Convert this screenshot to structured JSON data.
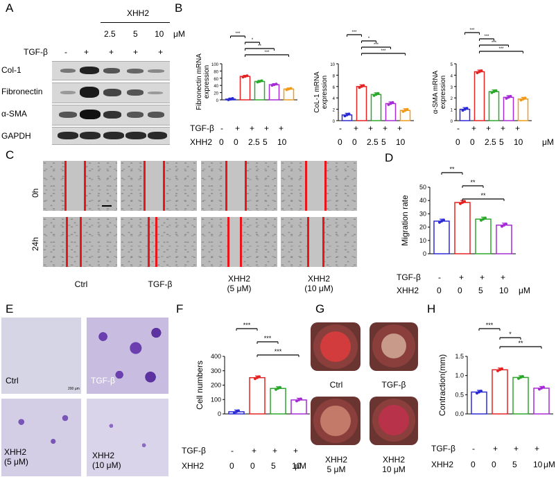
{
  "panel_letters": {
    "a": "A",
    "b": "B",
    "c": "C",
    "d": "D",
    "e": "E",
    "f": "F",
    "g": "G",
    "h": "H"
  },
  "panelA": {
    "xhh2_header": "XHH2",
    "doses": [
      "2.5",
      "5",
      "10"
    ],
    "unit": "μM",
    "tgf_label": "TGF-β",
    "tgf_signs": [
      "-",
      "+",
      "+",
      "+",
      "+"
    ],
    "rows": [
      "Col-1",
      "Fibronectin",
      "α-SMA",
      "GAPDH"
    ]
  },
  "panelB": {
    "row_labels": {
      "tgf": "TGF-β",
      "xhh2": "XHH2"
    },
    "tgf_signs": [
      "-",
      "+",
      "+",
      "+",
      "+"
    ],
    "xhh2_doses": [
      "0",
      "0",
      "2.5",
      "5",
      "10"
    ],
    "unit": "μM"
  },
  "panelC": {
    "row_labels": [
      "0h",
      "24h"
    ],
    "col_labels": [
      "Ctrl",
      "TGF-β",
      "XHH2\n(5 μM)",
      "XHH2\n(10 μM)"
    ]
  },
  "panelE": {
    "labels": [
      "Ctrl",
      "TGF-β",
      "XHH2\n(5 μM)",
      "XHH2\n(10 μM)"
    ],
    "scale_text": "200 μm"
  },
  "panelG": {
    "labels": [
      "Ctrl",
      "TGF-β",
      "XHH2\n5 μM",
      "XHH2\n10 μM"
    ]
  },
  "colors": {
    "ctrl": "#2b2bd6",
    "tgf": "#e52222",
    "x25": "#2ba82b",
    "x5": "#a62bd6",
    "x10": "#f09a1a"
  },
  "chart_data": [
    {
      "id": "B1",
      "type": "bar",
      "categories": [
        "Ctrl",
        "TGF-β",
        "XHH2 2.5",
        "XHH2 5",
        "XHH2 10"
      ],
      "values": [
        2,
        65,
        51,
        42,
        30
      ],
      "ylabel": "Fibronectin mRNA expression",
      "ylim": [
        0,
        100
      ],
      "yticks": [
        0,
        20,
        40,
        60,
        80,
        100
      ],
      "sig": [
        {
          "from": 0,
          "to": 1,
          "label": "***"
        },
        {
          "from": 1,
          "to": 2,
          "label": "*"
        },
        {
          "from": 1,
          "to": 3,
          "label": "**"
        },
        {
          "from": 1,
          "to": 4,
          "label": "***"
        }
      ]
    },
    {
      "id": "B2",
      "type": "bar",
      "categories": [
        "Ctrl",
        "TGF-β",
        "XHH2 2.5",
        "XHH2 5",
        "XHH2 10"
      ],
      "values": [
        1,
        6,
        4.6,
        3,
        1.8
      ],
      "ylabel": "CoL-1 mRNA expression",
      "ylim": [
        0,
        10
      ],
      "yticks": [
        0,
        2,
        4,
        6,
        8,
        10
      ],
      "sig": [
        {
          "from": 0,
          "to": 1,
          "label": "***"
        },
        {
          "from": 1,
          "to": 2,
          "label": "*"
        },
        {
          "from": 1,
          "to": 3,
          "label": "***"
        },
        {
          "from": 1,
          "to": 4,
          "label": "***"
        }
      ]
    },
    {
      "id": "B3",
      "type": "bar",
      "categories": [
        "Ctrl",
        "TGF-β",
        "XHH2 2.5",
        "XHH2 5",
        "XHH2 10"
      ],
      "values": [
        1,
        4.3,
        2.55,
        2.05,
        1.9
      ],
      "ylabel": "α-SMA mRNA expression",
      "ylim": [
        0,
        5
      ],
      "yticks": [
        0,
        1,
        2,
        3,
        4,
        5
      ],
      "sig": [
        {
          "from": 0,
          "to": 1,
          "label": "***"
        },
        {
          "from": 1,
          "to": 2,
          "label": "***"
        },
        {
          "from": 1,
          "to": 3,
          "label": "***"
        },
        {
          "from": 1,
          "to": 4,
          "label": "***"
        }
      ]
    },
    {
      "id": "D",
      "type": "bar",
      "categories": [
        "Ctrl",
        "TGF-β",
        "XHH2 5",
        "XHH2 10"
      ],
      "values": [
        24.5,
        38.5,
        26,
        21.5
      ],
      "ylabel": "Migration rate",
      "ylim": [
        0,
        50
      ],
      "yticks": [
        0,
        10,
        20,
        30,
        40,
        50
      ],
      "sig": [
        {
          "from": 0,
          "to": 1,
          "label": "**"
        },
        {
          "from": 1,
          "to": 2,
          "label": "**"
        },
        {
          "from": 1,
          "to": 3,
          "label": "**"
        }
      ],
      "x_rows": {
        "tgf": [
          "-",
          "+",
          "+",
          "+"
        ],
        "xhh2": [
          "0",
          "0",
          "5",
          "10"
        ]
      }
    },
    {
      "id": "F",
      "type": "bar",
      "categories": [
        "Ctrl",
        "TGF-β",
        "XHH2 5",
        "XHH2 10"
      ],
      "values": [
        15,
        252,
        177,
        97
      ],
      "ylabel": "Cell numbers",
      "ylim": [
        0,
        400
      ],
      "yticks": [
        0,
        100,
        200,
        300,
        400
      ],
      "sig": [
        {
          "from": 0,
          "to": 1,
          "label": "***"
        },
        {
          "from": 1,
          "to": 2,
          "label": "***"
        },
        {
          "from": 1,
          "to": 3,
          "label": "***"
        }
      ],
      "x_rows": {
        "tgf": [
          "-",
          "+",
          "+",
          "+"
        ],
        "xhh2": [
          "0",
          "0",
          "5",
          "10"
        ]
      }
    },
    {
      "id": "H",
      "type": "bar",
      "categories": [
        "Ctrl",
        "TGF-β",
        "XHH2 5",
        "XHH2 10"
      ],
      "values": [
        0.57,
        1.15,
        0.95,
        0.67
      ],
      "ylabel": "Contraction(mm)",
      "ylim": [
        0,
        1.5
      ],
      "yticks": [
        0.0,
        0.5,
        1.0,
        1.5
      ],
      "sig": [
        {
          "from": 0,
          "to": 1,
          "label": "***"
        },
        {
          "from": 1,
          "to": 2,
          "label": "*"
        },
        {
          "from": 1,
          "to": 3,
          "label": "**"
        }
      ],
      "x_rows": {
        "tgf": [
          "-",
          "+",
          "+",
          "+"
        ],
        "xhh2": [
          "0",
          "0",
          "5",
          "10"
        ]
      }
    }
  ]
}
